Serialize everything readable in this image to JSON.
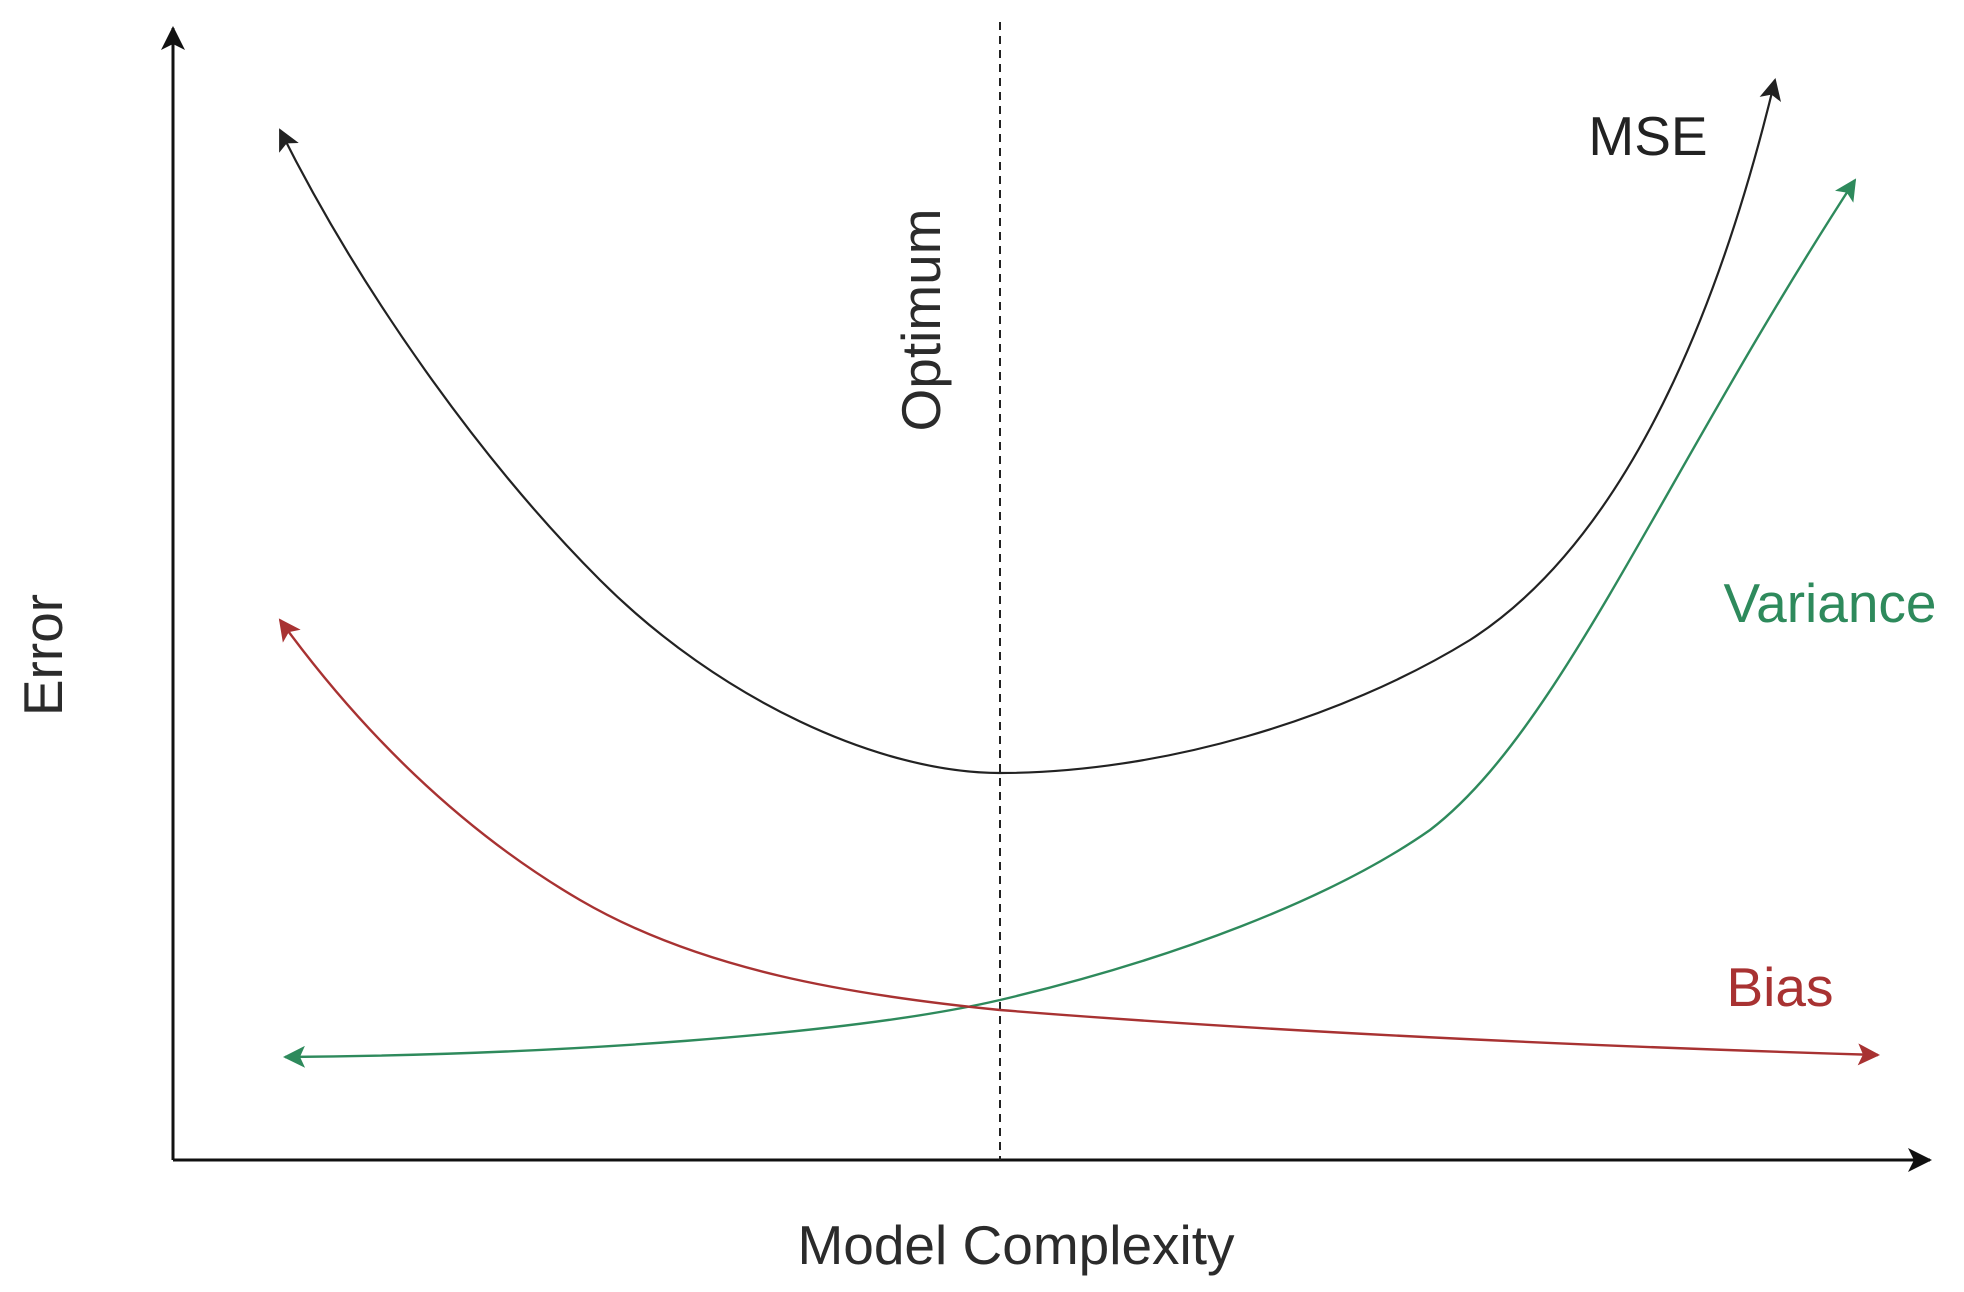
{
  "diagram": {
    "title": "",
    "axes": {
      "x_label": "Model Complexity",
      "y_label": "Error"
    },
    "optimum_label": "Optimum",
    "curves": {
      "mse": {
        "label": "MSE",
        "color": "#222222"
      },
      "variance": {
        "label": "Variance",
        "color": "#2e8a5c"
      },
      "bias": {
        "label": "Bias",
        "color": "#a83232"
      }
    },
    "optimum_line_color": "#222222",
    "axis_color": "#111111"
  }
}
